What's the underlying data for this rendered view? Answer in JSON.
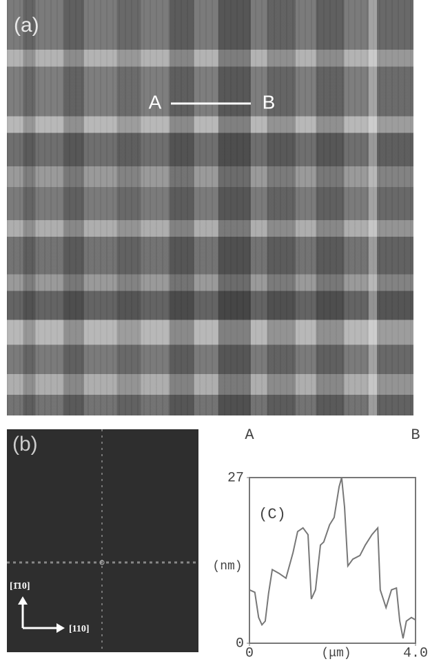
{
  "panel_a": {
    "label": "(a)",
    "markers": [
      "A",
      "B"
    ]
  },
  "panel_b": {
    "label": "(b)",
    "axis_x": "[110]",
    "axis_y": "[1̄10]"
  },
  "chart_data": {
    "type": "line",
    "panel_label": "(C)",
    "xlabel": "(μm)",
    "ylabel": "(nm)",
    "color": "#777777",
    "x": [
      0,
      0.13,
      0.22,
      0.3,
      0.38,
      0.46,
      0.55,
      0.71,
      0.88,
      1.05,
      1.16,
      1.29,
      1.41,
      1.49,
      1.59,
      1.71,
      1.79,
      1.93,
      2.04,
      2.16,
      2.22,
      2.29,
      2.37,
      2.49,
      2.66,
      2.79,
      2.95,
      3.09,
      3.15,
      3.29,
      3.42,
      3.54,
      3.62,
      3.7,
      3.78,
      3.9,
      4.0
    ],
    "values": [
      8.7,
      8.3,
      4.2,
      3.0,
      3.6,
      8.1,
      12.0,
      11.4,
      10.6,
      14.8,
      18.2,
      18.8,
      17.7,
      7.2,
      8.7,
      16.0,
      16.5,
      19.3,
      20.5,
      25.5,
      27,
      22.2,
      12.6,
      13.7,
      14.3,
      16.0,
      17.7,
      18.8,
      8.7,
      5.8,
      8.7,
      9.0,
      3.6,
      0.8,
      3.6,
      4.2,
      3.8
    ],
    "xlim": [
      0,
      4
    ],
    "ylim": [
      0,
      27
    ],
    "xticks": [
      0,
      {
        "value": 4,
        "label": "4.0"
      }
    ],
    "yticks": [
      0,
      27
    ]
  }
}
